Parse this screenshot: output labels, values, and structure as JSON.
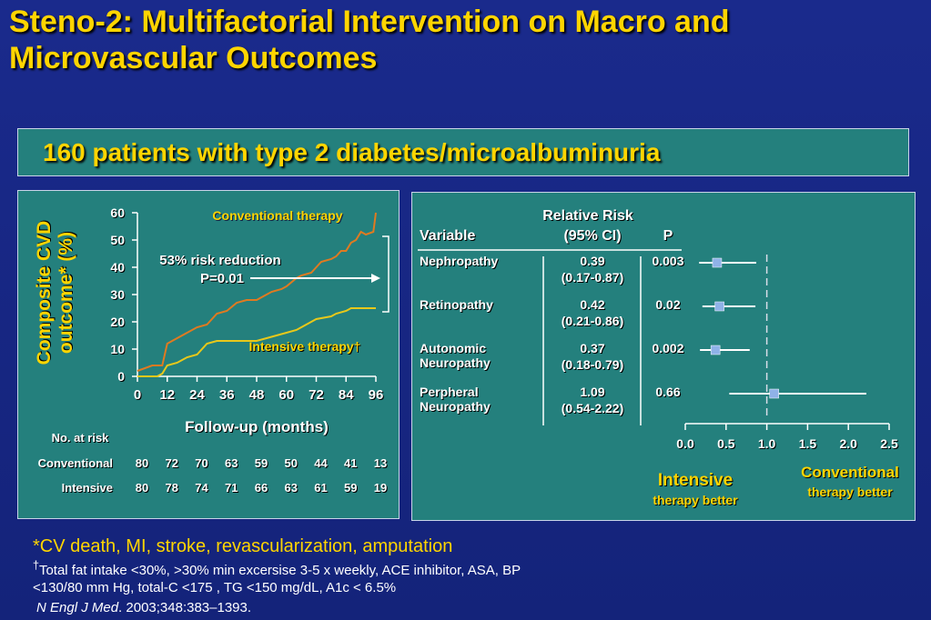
{
  "title_line1": "Steno-2:  Multifactorial Intervention on Macro and",
  "title_line2": "Microvascular Outcomes",
  "banner": "160 patients with type 2 diabetes/microalbuminuria",
  "colors": {
    "accent": "#ffd500",
    "panel": "#24807d",
    "conventional": "#e07a20",
    "intensive": "#e8c81a",
    "forest_marker": "#8fb2e8"
  },
  "chart_data": [
    {
      "type": "line",
      "ylabel": "Composite CVD outcome* (%)",
      "xlabel": "Follow-up (months)",
      "xticks": [
        "0",
        "12",
        "24",
        "36",
        "48",
        "60",
        "72",
        "84",
        "96"
      ],
      "yticks": [
        "0",
        "10",
        "20",
        "30",
        "40",
        "50",
        "60"
      ],
      "xlim": [
        0,
        96
      ],
      "ylim": [
        0,
        60
      ],
      "series": [
        {
          "name": "Conventional therapy",
          "x": [
            0,
            6,
            10,
            12,
            14,
            18,
            24,
            28,
            32,
            36,
            40,
            44,
            48,
            50,
            54,
            58,
            60,
            64,
            66,
            70,
            72,
            74,
            78,
            80,
            82,
            84,
            86,
            88,
            90,
            92,
            95,
            96
          ],
          "y": [
            2,
            4,
            4,
            12,
            13,
            15,
            18,
            19,
            23,
            24,
            27,
            28,
            28,
            29,
            31,
            32,
            33,
            36,
            37,
            38,
            40,
            42,
            43,
            44,
            46,
            46,
            49,
            50,
            53,
            52,
            53,
            60
          ]
        },
        {
          "name": "Intensive therapy†",
          "x": [
            0,
            8,
            10,
            12,
            16,
            18,
            20,
            24,
            28,
            32,
            36,
            48,
            52,
            56,
            60,
            64,
            66,
            70,
            72,
            78,
            80,
            84,
            86,
            88,
            92,
            96
          ],
          "y": [
            0,
            0,
            1,
            4,
            5,
            6,
            7,
            8,
            12,
            13,
            13,
            13,
            14,
            15,
            16,
            17,
            18,
            20,
            21,
            22,
            23,
            24,
            25,
            25,
            25,
            25
          ]
        }
      ],
      "annotations": [
        "53% risk reduction",
        "P=0.01"
      ],
      "risk_table": {
        "header": "No. at risk",
        "rows": [
          {
            "label": "Conventional",
            "values": [
              "80",
              "72",
              "70",
              "63",
              "59",
              "50",
              "44",
              "41",
              "13"
            ]
          },
          {
            "label": "Intensive",
            "values": [
              "80",
              "78",
              "74",
              "71",
              "66",
              "63",
              "61",
              "59",
              "19"
            ]
          }
        ]
      }
    },
    {
      "type": "forest",
      "header": {
        "rr_line1": "Relative Risk",
        "rr_line2": "(95% CI)",
        "variable": "Variable",
        "p": "P"
      },
      "xticks": [
        "0.0",
        "0.5",
        "1.0",
        "1.5",
        "2.0",
        "2.5"
      ],
      "xlim": [
        0,
        2.5
      ],
      "reference": 1.0,
      "rows": [
        {
          "variable": [
            "Nephropathy"
          ],
          "rr": "0.39",
          "ci": "(0.17-0.87)",
          "p": "0.003",
          "point": 0.39,
          "low": 0.17,
          "high": 0.87
        },
        {
          "variable": [
            "Retinopathy"
          ],
          "rr": "0.42",
          "ci": "(0.21-0.86)",
          "p": "0.02",
          "point": 0.42,
          "low": 0.21,
          "high": 0.86
        },
        {
          "variable": [
            "Autonomic",
            "Neuropathy"
          ],
          "rr": "0.37",
          "ci": "(0.18-0.79)",
          "p": "0.002",
          "point": 0.37,
          "low": 0.18,
          "high": 0.79
        },
        {
          "variable": [
            "Perpheral",
            "Neuropathy"
          ],
          "rr": "1.09",
          "ci": "(0.54-2.22)",
          "p": "0.66",
          "point": 1.09,
          "low": 0.54,
          "high": 2.22
        }
      ],
      "left_label": [
        "Intensive",
        "therapy better"
      ],
      "right_label": [
        "Conventional",
        "therapy better"
      ]
    }
  ],
  "footnotes": {
    "outcome": "*CV death, MI, stroke, revascularization, amputation",
    "dagger": "†",
    "therapy_line1": "Total fat intake <30%, >30% min excersise 3-5 x weekly, ACE inhibitor, ASA, BP",
    "therapy_line2": "<130/80 mm Hg, total-C <175 , TG <150 mg/dL, A1c < 6.5%",
    "journal": "N Engl J Med",
    "citation": ". 2003;348:383–1393."
  }
}
